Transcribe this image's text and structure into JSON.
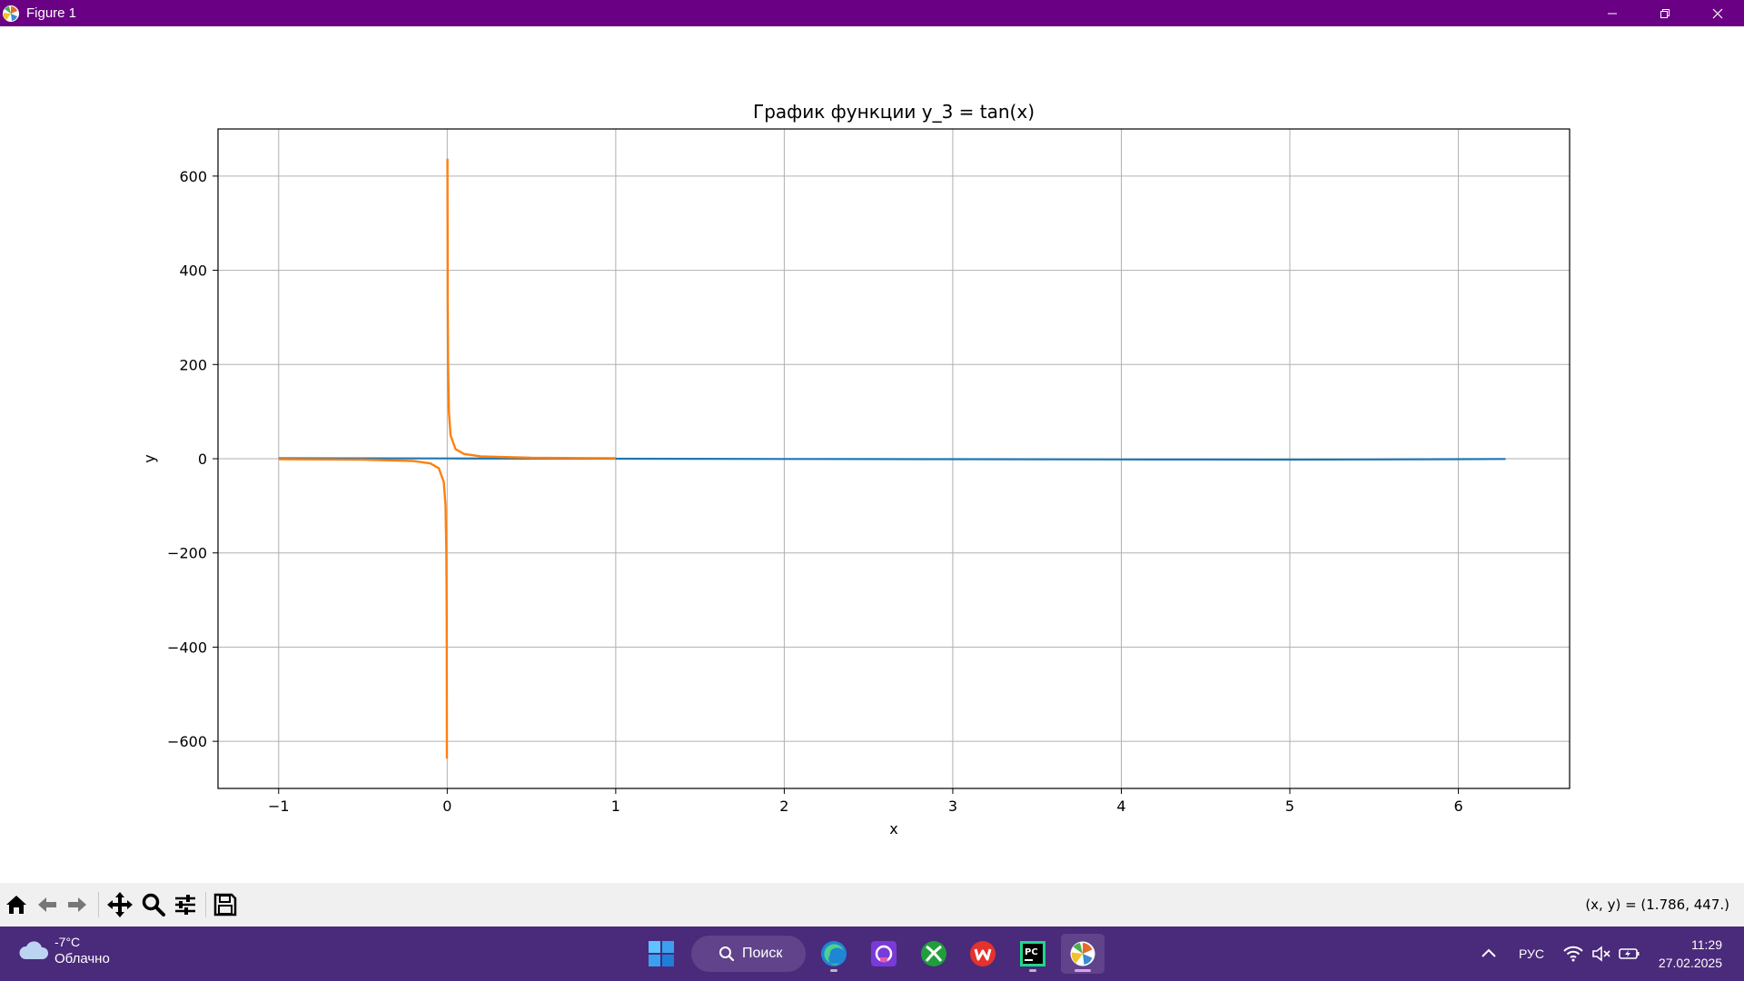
{
  "window": {
    "title": "Figure 1",
    "controls": [
      "minimize",
      "restore",
      "close"
    ]
  },
  "chart_data": {
    "type": "line",
    "title": "График функции y_3 = tan(x)",
    "xlabel": "x",
    "ylabel": "y",
    "xlim": [
      -1.36,
      6.66
    ],
    "ylim": [
      -700,
      700
    ],
    "xticks": [
      -1,
      0,
      1,
      2,
      3,
      4,
      5,
      6
    ],
    "yticks": [
      -600,
      -400,
      -200,
      0,
      200,
      400,
      600
    ],
    "xtick_labels": [
      "−1",
      "0",
      "1",
      "2",
      "3",
      "4",
      "5",
      "6"
    ],
    "ytick_labels": [
      "−600",
      "−400",
      "−200",
      "0",
      "200",
      "400",
      "600"
    ],
    "grid": true,
    "legend": false,
    "series": [
      {
        "color": "#1f77b4",
        "x": [
          -1,
          -0.5,
          0,
          0.5,
          1,
          1.5,
          2,
          2.5,
          3,
          3.5,
          4,
          4.5,
          5,
          5.5,
          6,
          6.28
        ],
        "y": [
          1.0,
          0.75,
          0.5,
          0.25,
          0,
          -0.25,
          -0.5,
          -0.75,
          -1.0,
          -1.25,
          -1.5,
          -1.75,
          -2.0,
          -1.5,
          -1.0,
          -0.5
        ]
      },
      {
        "color": "#ff7f0e",
        "x": [
          -1,
          -0.5,
          -0.2,
          -0.1,
          -0.05,
          -0.02,
          -0.01,
          -0.005,
          -0.003,
          -0.0016,
          0.0016,
          0.003,
          0.005,
          0.01,
          0.02,
          0.05,
          0.1,
          0.2,
          0.5,
          1
        ],
        "y": [
          -1,
          -2,
          -5,
          -10,
          -20,
          -50,
          -100,
          -200,
          -333,
          -637,
          637,
          333,
          200,
          100,
          50,
          20,
          10,
          5,
          2,
          1
        ]
      }
    ]
  },
  "toolbar": {
    "tools": [
      "home-icon",
      "back-icon",
      "forward-icon",
      "pan-icon",
      "zoom-icon",
      "configure-subplots-icon",
      "save-icon"
    ],
    "coords": "(x, y) = (1.786, 447.)"
  },
  "taskbar": {
    "weather": {
      "temp": "-7°C",
      "condition": "Облачно"
    },
    "search_label": "Поиск",
    "apps": [
      "windows-start-icon",
      "edge-icon",
      "copilot-icon",
      "xbox-icon",
      "wps-office-icon",
      "pycharm-icon",
      "matplotlib-icon"
    ],
    "tray": {
      "language": "РУС"
    },
    "clock": {
      "time": "11:29",
      "date": "27.02.2025"
    }
  }
}
